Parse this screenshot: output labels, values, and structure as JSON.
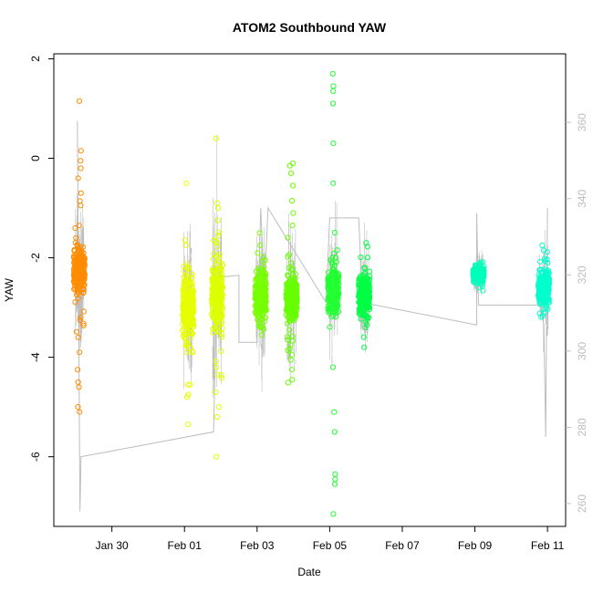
{
  "chart_data": {
    "type": "scatter",
    "title": "ATOM2 Southbound YAW",
    "xlabel": "Date",
    "ylabel": "YAW",
    "x_tick_labels": [
      "Jan 30",
      "Feb 01",
      "Feb 03",
      "Feb 05",
      "Feb 07",
      "Feb 09",
      "Feb 11"
    ],
    "x_tick_days": [
      30,
      32,
      34,
      36,
      38,
      40,
      42
    ],
    "xlim_days": [
      28.4,
      42.5
    ],
    "y_ticks": [
      2,
      0,
      -2,
      -4,
      -6
    ],
    "ylim": [
      -7.4,
      2.1
    ],
    "y2_ticks": [
      360,
      340,
      320,
      300,
      280,
      260
    ],
    "y2lim": [
      254,
      378
    ],
    "grid": false,
    "clusters": [
      {
        "day": 29.1,
        "center": -2.25,
        "core_sd": 0.2,
        "spread": 0.65,
        "color": "#FF8C00",
        "outliers": [
          1.15,
          0.15,
          -0.05,
          -0.2,
          -5.1,
          -5.0,
          -4.6,
          -4.5,
          -4.25,
          -3.9,
          -3.6,
          -3.2,
          -0.4,
          -0.7,
          -0.95
        ]
      },
      {
        "day": 32.1,
        "center": -3.0,
        "core_sd": 0.3,
        "spread": 0.55,
        "color": "#E6FF00",
        "outliers": [
          -0.5,
          -1.75,
          -5.35,
          -4.8,
          -4.75,
          -4.55
        ]
      },
      {
        "day": 32.9,
        "center": -2.75,
        "core_sd": 0.3,
        "spread": 0.65,
        "color": "#DDFF00",
        "outliers": [
          0.4,
          -0.9,
          -1.0,
          -1.25,
          -1.55,
          -1.7,
          -6.0,
          -5.2,
          -5.0,
          -4.7,
          -4.35,
          -4.2
        ]
      },
      {
        "day": 34.1,
        "center": -2.75,
        "core_sd": 0.2,
        "spread": 0.45,
        "color": "#77FF00",
        "outliers": [
          -1.5,
          -1.75,
          -3.55,
          -3.4
        ]
      },
      {
        "day": 34.95,
        "center": -2.85,
        "core_sd": 0.2,
        "spread": 0.5,
        "color": "#66FF00",
        "outliers": [
          -0.1,
          -0.15,
          -0.3,
          -0.55,
          -0.85,
          -1.1,
          -1.35,
          -4.45,
          -4.25,
          -3.95,
          -3.75
        ]
      },
      {
        "day": 36.1,
        "center": -2.65,
        "core_sd": 0.2,
        "spread": 0.45,
        "color": "#22FF33",
        "outliers": [
          1.7,
          1.45,
          1.35,
          1.1,
          0.3,
          -0.5,
          -5.1,
          -5.5,
          -6.35,
          -6.45,
          -6.55,
          -7.15,
          -4.2
        ]
      },
      {
        "day": 36.95,
        "center": -2.75,
        "core_sd": 0.18,
        "spread": 0.4,
        "color": "#00FF44",
        "outliers": [
          -3.4,
          -3.8
        ]
      },
      {
        "day": 40.1,
        "center": -2.32,
        "core_sd": 0.06,
        "spread": 0.15,
        "color": "#00FFBB",
        "outliers": []
      },
      {
        "day": 41.9,
        "center": -2.6,
        "core_sd": 0.15,
        "spread": 0.35,
        "color": "#00FFCC",
        "outliers": [
          -1.75,
          -1.85,
          -3.1
        ]
      }
    ],
    "path_line": {
      "color": "#bdbdbd",
      "points": [
        [
          29.05,
          0.75
        ],
        [
          29.12,
          -7.1
        ],
        [
          29.15,
          -6.0
        ],
        [
          32.8,
          -5.5
        ],
        [
          32.9,
          -2.4
        ],
        [
          33.5,
          -2.35
        ],
        [
          33.5,
          -3.7
        ],
        [
          34.0,
          -3.7
        ],
        [
          34.1,
          -1.0
        ],
        [
          34.2,
          -2.7
        ],
        [
          34.3,
          -1.0
        ],
        [
          35.9,
          -2.9
        ],
        [
          36.0,
          -1.2
        ],
        [
          36.8,
          -1.2
        ],
        [
          36.9,
          -2.9
        ],
        [
          40.05,
          -3.35
        ],
        [
          40.05,
          -1.1
        ],
        [
          40.1,
          -2.95
        ],
        [
          41.8,
          -2.95
        ],
        [
          41.9,
          -3.35
        ],
        [
          41.95,
          -5.6
        ],
        [
          42.0,
          -1.0
        ]
      ]
    }
  }
}
